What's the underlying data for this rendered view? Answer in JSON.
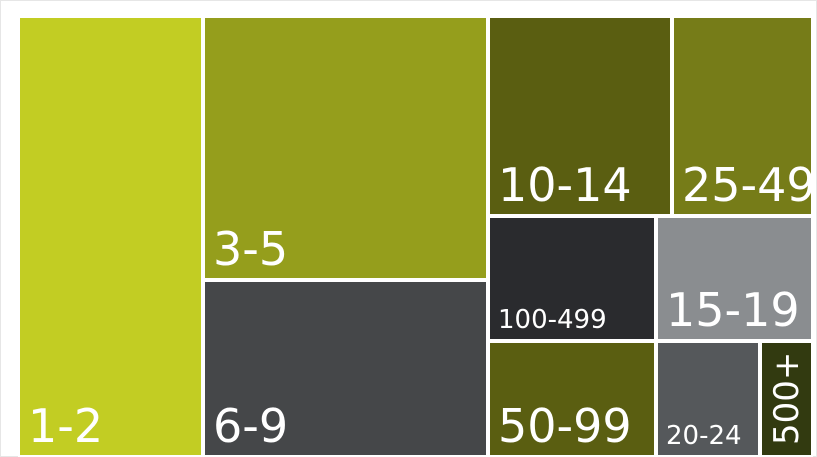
{
  "chart_data": {
    "type": "treemap",
    "title": "",
    "tiles": [
      {
        "label": "1-2",
        "color": "#c2cd23"
      },
      {
        "label": "3-5",
        "color": "#959e1c"
      },
      {
        "label": "6-9",
        "color": "#454749"
      },
      {
        "label": "10-14",
        "color": "#5a5e11"
      },
      {
        "label": "25-49",
        "color": "#767c18"
      },
      {
        "label": "100-499",
        "color": "#2a2b2e"
      },
      {
        "label": "15-19",
        "color": "#8a8d90"
      },
      {
        "label": "50-99",
        "color": "#5a5e11"
      },
      {
        "label": "20-24",
        "color": "#55585b"
      },
      {
        "label": "500+",
        "color": "#323a10"
      }
    ]
  }
}
